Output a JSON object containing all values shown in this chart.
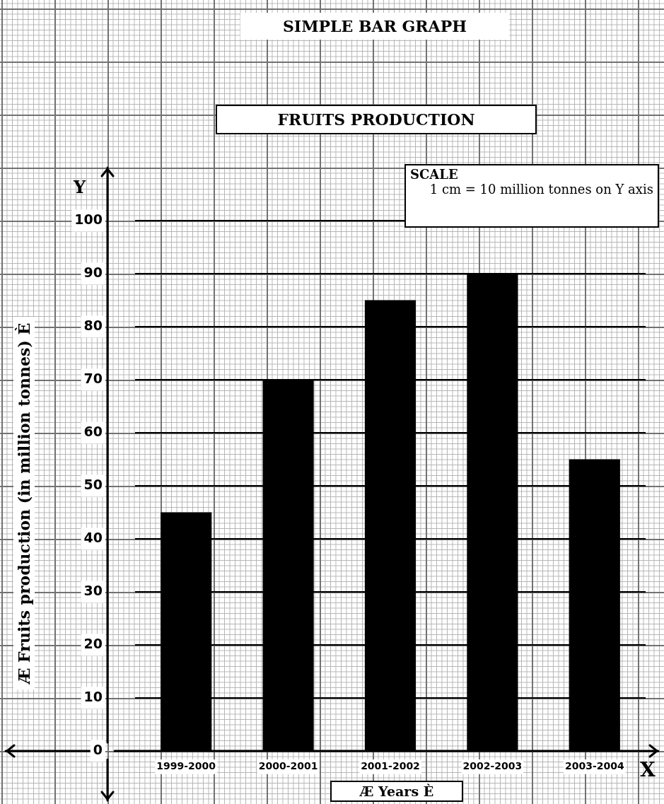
{
  "chart_data": {
    "type": "bar",
    "title": "SIMPLE BAR GRAPH",
    "subtitle": "FRUITS PRODUCTION",
    "xlabel": "Æ Years È",
    "ylabel": "Æ Fruits production (in million tonnes) È",
    "annotations": [
      "SCALE",
      "1 cm = 10 million tonnes on Y axis",
      "Y",
      "X"
    ],
    "categories": [
      "1999-2000",
      "2000-2001",
      "2001-2002",
      "2002-2003",
      "2003-2004"
    ],
    "values": [
      45,
      70,
      85,
      90,
      55
    ],
    "color": "#000000",
    "ylim": [
      0,
      110
    ],
    "yticks": [
      0,
      10,
      20,
      30,
      40,
      50,
      60,
      70,
      80,
      90,
      100
    ],
    "grid": "y",
    "legend": false
  }
}
